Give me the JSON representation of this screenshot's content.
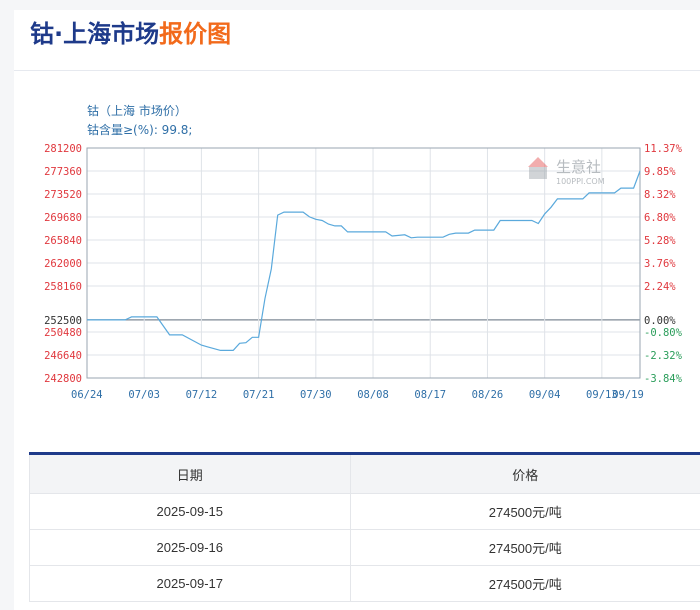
{
  "header": {
    "title_main": "钴·上海市场",
    "title_highlight": "报价图"
  },
  "chart_data": {
    "type": "line",
    "title": "钴（上海 市场价）",
    "subtitle": "钴含量≥(%): 99.8;",
    "watermark": {
      "cn": "生意社",
      "en": "100PPI.COM"
    },
    "x_tick_labels": [
      "06/24",
      "07/03",
      "07/12",
      "07/21",
      "07/30",
      "08/08",
      "08/17",
      "08/26",
      "09/04",
      "09/13",
      "09/19"
    ],
    "y_left_ticks": [
      "281200",
      "277360",
      "273520",
      "269680",
      "265840",
      "262000",
      "258160",
      "252500",
      "250480",
      "246640",
      "242800"
    ],
    "y_right_ticks": [
      "11.37%",
      "9.85%",
      "8.32%",
      "6.80%",
      "5.28%",
      "3.76%",
      "2.24%",
      "0.00%",
      "-0.80%",
      "-2.32%",
      "-3.84%"
    ],
    "ylim": [
      242800,
      281200
    ],
    "base_value": 252500,
    "line_color": "#5aa9dc",
    "left_label_color": "#e0383e",
    "right_label_color": "#e0383e",
    "zero_label_color": "#333333",
    "x_label_color": "#2f6fa7",
    "series": [
      {
        "days": [
          0,
          6,
          7,
          11,
          13,
          15,
          18,
          19,
          21,
          23,
          24,
          25,
          26,
          27,
          28,
          29,
          30,
          31,
          32,
          33,
          34,
          35,
          36,
          37,
          38,
          39,
          40,
          41,
          42,
          44,
          45,
          47,
          48,
          50,
          51,
          52,
          53,
          54,
          55,
          56,
          57,
          58,
          59,
          60,
          61,
          62,
          63,
          64,
          65,
          66,
          67,
          68,
          69,
          70,
          71,
          72,
          73,
          74,
          75,
          76,
          77,
          78,
          79,
          80,
          81,
          82,
          83,
          84,
          85,
          86,
          87
        ],
        "values": [
          252500,
          252500,
          253000,
          253000,
          250000,
          250000,
          248300,
          248000,
          247400,
          247400,
          248600,
          248700,
          249600,
          249600,
          256100,
          261000,
          270000,
          270500,
          270500,
          270500,
          270500,
          269700,
          269300,
          269100,
          268500,
          268200,
          268200,
          267200,
          267200,
          267200,
          267200,
          267200,
          266500,
          266700,
          266200,
          266300,
          266300,
          266300,
          266300,
          266300,
          266800,
          267000,
          267000,
          267000,
          267500,
          267500,
          267500,
          267500,
          269100,
          269100,
          269100,
          269100,
          269100,
          269100,
          268600,
          270200,
          271300,
          272700,
          272700,
          272700,
          272700,
          272700,
          273700,
          273700,
          273700,
          273700,
          273700,
          274500,
          274500,
          274500,
          277360
        ]
      }
    ]
  },
  "table": {
    "headers": [
      "日期",
      "价格"
    ],
    "rows": [
      [
        "2025-09-15",
        "274500元/吨"
      ],
      [
        "2025-09-16",
        "274500元/吨"
      ],
      [
        "2025-09-17",
        "274500元/吨"
      ]
    ]
  }
}
